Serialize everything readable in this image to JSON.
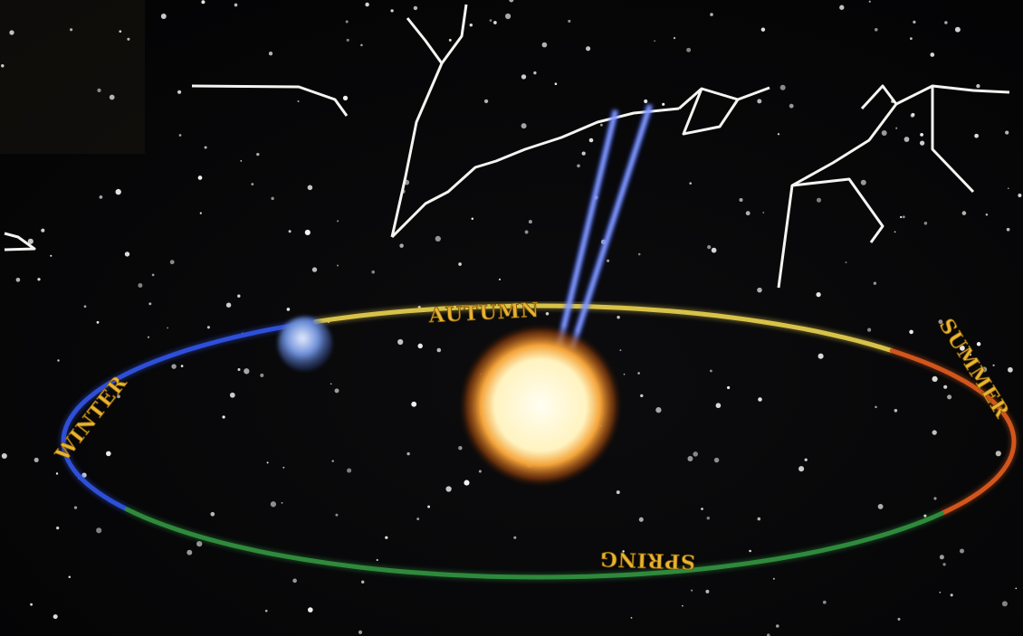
{
  "orbit_labels": {
    "autumn": "AUTUMN",
    "summer": "SUMMER",
    "spring": "SPRING",
    "winter": "WINTER"
  }
}
